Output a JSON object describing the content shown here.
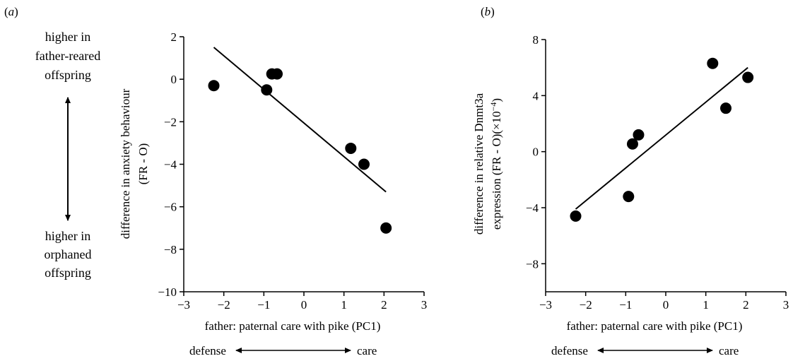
{
  "side_annotation": {
    "top_lines": [
      "higher in",
      "father-reared",
      "offspring"
    ],
    "bottom_lines": [
      "higher in",
      "orphaned",
      "offspring"
    ]
  },
  "chart_data": [
    {
      "panel": "a",
      "panel_label_parts": [
        "(",
        "a",
        ")"
      ],
      "type": "scatter",
      "xlabel": "father: paternal care with pike (PC1)",
      "ylabel_lines": [
        "difference in anxiety behaviour",
        "(FR - O)"
      ],
      "xlim": [
        -3,
        3
      ],
      "ylim": [
        -10,
        2
      ],
      "x_ticks": [
        -3,
        -2,
        -1,
        0,
        1,
        2,
        3
      ],
      "y_ticks": [
        2,
        0,
        -2,
        -4,
        -6,
        -8,
        -10
      ],
      "x_tick_labels": [
        "−3",
        "−2",
        "−1",
        "0",
        "1",
        "2",
        "3"
      ],
      "y_tick_labels": [
        "2",
        "0",
        "−2",
        "−4",
        "−6",
        "−8",
        "−10"
      ],
      "points": [
        {
          "x": -2.25,
          "y": -0.3
        },
        {
          "x": -0.93,
          "y": -0.5
        },
        {
          "x": -0.8,
          "y": 0.25
        },
        {
          "x": -0.67,
          "y": 0.25
        },
        {
          "x": 1.17,
          "y": -3.25
        },
        {
          "x": 1.5,
          "y": -4.0
        },
        {
          "x": 2.05,
          "y": -7.0
        }
      ],
      "fit_line": {
        "x": [
          -2.25,
          2.05
        ],
        "y": [
          1.5,
          -5.3
        ]
      },
      "direction_axis": {
        "left_label": "defense",
        "right_label": "care"
      }
    },
    {
      "panel": "b",
      "panel_label_parts": [
        "(",
        "b",
        ")"
      ],
      "type": "scatter",
      "xlabel": "father: paternal care with pike (PC1)",
      "ylabel_lines": [
        "difference in relative Dnmt3a",
        "expression (FR - O)(×10",
        "−4",
        ")"
      ],
      "xlim": [
        -3,
        3
      ],
      "ylim": [
        -10,
        8
      ],
      "x_ticks": [
        -3,
        -2,
        -1,
        0,
        1,
        2,
        3
      ],
      "y_ticks": [
        8,
        4,
        0,
        -4,
        -8
      ],
      "x_tick_labels": [
        "−3",
        "−2",
        "−1",
        "0",
        "1",
        "2",
        "3"
      ],
      "y_tick_labels": [
        "8",
        "4",
        "0",
        "−4",
        "−8"
      ],
      "points": [
        {
          "x": -2.25,
          "y": -4.6
        },
        {
          "x": -0.93,
          "y": -3.2
        },
        {
          "x": -0.83,
          "y": 0.55
        },
        {
          "x": -0.68,
          "y": 1.2
        },
        {
          "x": 1.17,
          "y": 6.3
        },
        {
          "x": 1.5,
          "y": 3.1
        },
        {
          "x": 2.05,
          "y": 5.3
        }
      ],
      "fit_line": {
        "x": [
          -2.25,
          2.05
        ],
        "y": [
          -4.1,
          6.0
        ]
      },
      "direction_axis": {
        "left_label": "defense",
        "right_label": "care"
      }
    }
  ]
}
